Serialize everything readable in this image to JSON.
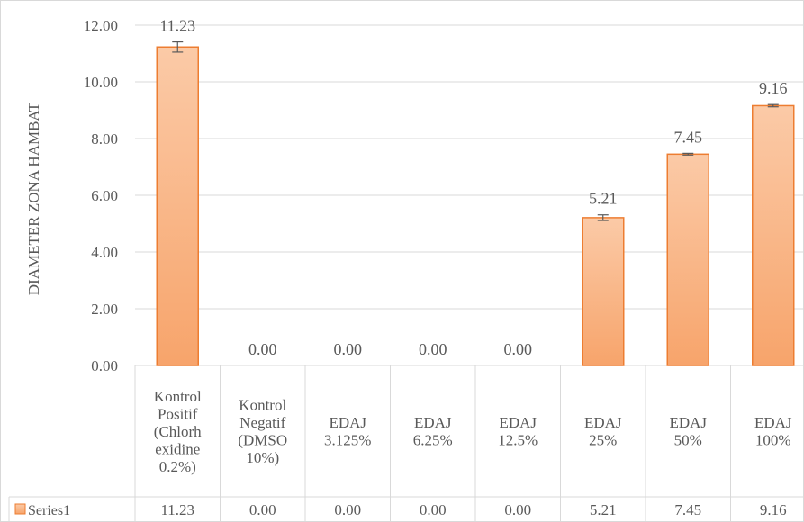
{
  "chart_data": {
    "type": "bar",
    "title": "",
    "xlabel": "",
    "ylabel": "DIAMETER ZONA HAMBAT",
    "ylim": [
      0,
      12
    ],
    "yticks": [
      "0.00",
      "2.00",
      "4.00",
      "6.00",
      "8.00",
      "10.00",
      "12.00"
    ],
    "ytick_values": [
      0,
      2,
      4,
      6,
      8,
      10,
      12
    ],
    "grid": true,
    "legend": "data-table",
    "categories": [
      [
        "Kontrol",
        "Positif",
        "(Chlorh",
        "exidine",
        "0.2%)"
      ],
      [
        "Kontrol",
        "Negatif",
        "(DMSO",
        "10%)"
      ],
      [
        "EDAJ",
        "3.125%"
      ],
      [
        "EDAJ",
        "6.25%"
      ],
      [
        "EDAJ",
        "12.5%"
      ],
      [
        "EDAJ",
        "25%"
      ],
      [
        "EDAJ",
        "50%"
      ],
      [
        "EDAJ",
        "100%"
      ]
    ],
    "series": [
      {
        "name": "Series1",
        "values": [
          11.23,
          0,
          0,
          0,
          0,
          5.21,
          7.45,
          9.16
        ],
        "labels": [
          "11.23",
          "0.00",
          "0.00",
          "0.00",
          "0.00",
          "5.21",
          "7.45",
          "9.16"
        ],
        "table_values": [
          "11.23",
          "0.00",
          "0.00",
          "0.00",
          "0.00",
          "5.21",
          "7.45",
          "9.16"
        ],
        "error": [
          0.18,
          0,
          0,
          0,
          0,
          0.1,
          0.03,
          0.04
        ],
        "color": "#f7a46b",
        "edge_color": "#ed7d31"
      }
    ]
  }
}
